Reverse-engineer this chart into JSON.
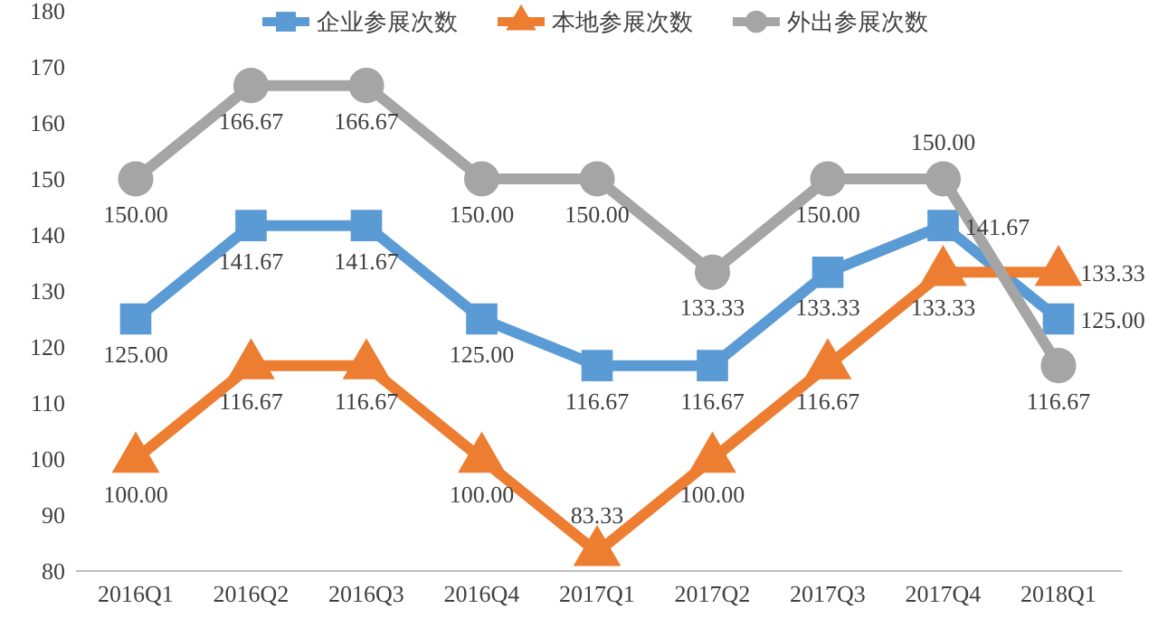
{
  "chart_data": {
    "type": "line",
    "categories": [
      "2016Q1",
      "2016Q2",
      "2016Q3",
      "2016Q4",
      "2017Q1",
      "2017Q2",
      "2017Q3",
      "2017Q4",
      "2018Q1"
    ],
    "ylim": [
      80,
      180
    ],
    "yticks": [
      80,
      90,
      100,
      110,
      120,
      130,
      140,
      150,
      160,
      170,
      180
    ],
    "legend": "top",
    "grid": false,
    "line_style": "solid",
    "series": [
      {
        "name": "企业参展次数",
        "color": "#5b9bd5",
        "marker": "square",
        "values": [
          125,
          141.67,
          141.67,
          125,
          116.67,
          116.67,
          133.33,
          141.67,
          125
        ],
        "value_labels": [
          "125.00",
          "141.67",
          "141.67",
          "125.00",
          "116.67",
          "116.67",
          "133.33",
          "141.67",
          "125.00"
        ]
      },
      {
        "name": "本地参展次数",
        "color": "#ed7d31",
        "marker": "triangle",
        "values": [
          100,
          116.67,
          116.67,
          100,
          83.33,
          100,
          116.67,
          133.33,
          133.33
        ],
        "value_labels": [
          "100.00",
          "116.67",
          "116.67",
          "100.00",
          "83.33",
          "100.00",
          "116.67",
          "133.33",
          "133.33"
        ]
      },
      {
        "name": "外出参展次数",
        "color": "#a5a5a5",
        "marker": "circle",
        "values": [
          150,
          166.67,
          166.67,
          150,
          150,
          133.33,
          150,
          150,
          116.67
        ],
        "value_labels": [
          "150.00",
          "166.67",
          "166.67",
          "150.00",
          "150.00",
          "133.33",
          "150.00",
          "150.00",
          "116.67"
        ]
      }
    ]
  }
}
